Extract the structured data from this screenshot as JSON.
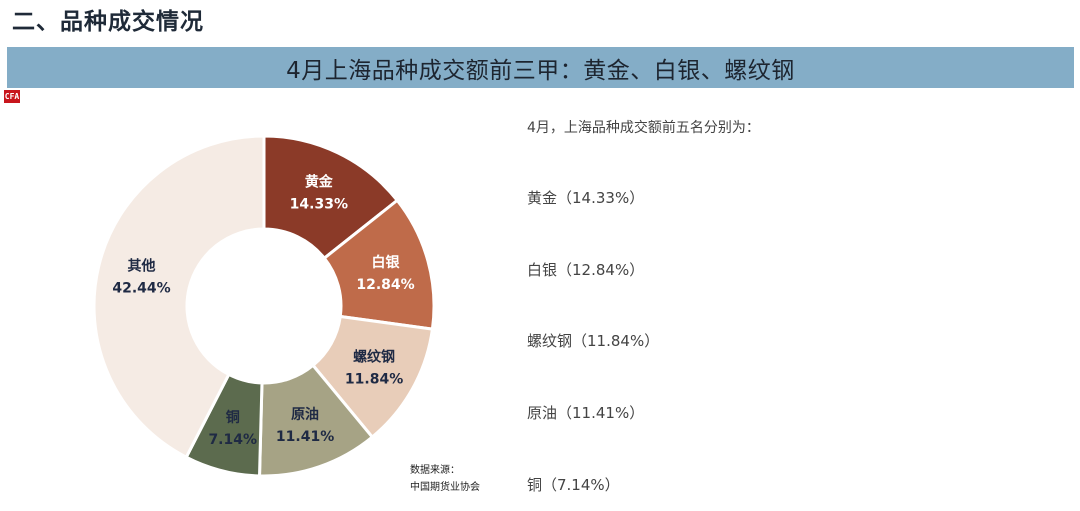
{
  "section_title": "二、品种成交情况",
  "banner_title": "4月上海品种成交额前三甲：黄金、白银、螺纹钢",
  "logo_text": "CFA",
  "source_label": "数据来源：",
  "source_name": "中国期货业协会",
  "list_title": "4月，上海品种成交额前五名分别为：",
  "list_items": [
    "黄金（14.33%）",
    "白银（12.84%）",
    "螺纹钢（11.84%）",
    "原油（11.41%）",
    "铜（7.14%）"
  ],
  "chart_data": {
    "type": "pie",
    "donut": true,
    "start_angle_deg": 0,
    "direction": "clockwise",
    "slices": [
      {
        "label": "黄金",
        "pct_label": "14.33%",
        "value": 14.33,
        "color": "#8b3a28",
        "text_color": "#ffffff"
      },
      {
        "label": "白银",
        "pct_label": "12.84%",
        "value": 12.84,
        "color": "#bf6b4a",
        "text_color": "#ffffff"
      },
      {
        "label": "螺纹钢",
        "pct_label": "11.84%",
        "value": 11.84,
        "color": "#e8cdb9",
        "text_color": "#1f2a44"
      },
      {
        "label": "原油",
        "pct_label": "11.41%",
        "value": 11.41,
        "color": "#a6a385",
        "text_color": "#1f2a44"
      },
      {
        "label": "铜",
        "pct_label": "7.14%",
        "value": 7.14,
        "color": "#5c6b4e",
        "text_color": "#1f2a44"
      },
      {
        "label": "其他",
        "pct_label": "42.44%",
        "value": 42.44,
        "color": "#f5ebe4",
        "text_color": "#1f2a44"
      }
    ]
  }
}
